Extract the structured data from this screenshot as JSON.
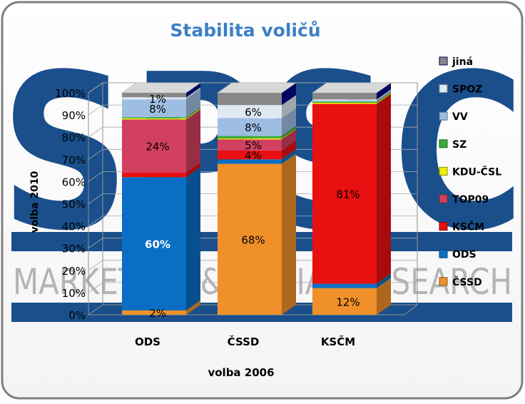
{
  "colors": {
    "jina": "#b0b0b0",
    "SPOZ": "#e0e8f4",
    "VV": "#9ebde2",
    "SZ": "#3aaa3a",
    "KDU-ČSL": "#f0f000",
    "TOP09": "#d24060",
    "KSČM": "#e81010",
    "ODS": "#0a6fc4",
    "ČSSD": "#f0902a",
    "watermark_blue": "#1a4f8c",
    "watermark_gray": "#b4b4b4",
    "title": "#3c7fc6"
  },
  "watermark": {
    "logo_letters": "SPSC",
    "line_text": "MARKETING & SOCIAL RESEARCH"
  },
  "chart_data": {
    "type": "bar",
    "stacked": true,
    "title": "Stabilita voličů",
    "xlabel": "volba 2006",
    "ylabel": "volba 2010",
    "categories": [
      "ODS",
      "ČSSD",
      "KSČM"
    ],
    "ylim": [
      0,
      100
    ],
    "yticks": [
      "0%",
      "10%",
      "20%",
      "30%",
      "40%",
      "50%",
      "60%",
      "70%",
      "80%",
      "90%",
      "100%"
    ],
    "series": [
      {
        "name": "ČSSD",
        "values": [
          2,
          68,
          12
        ]
      },
      {
        "name": "ODS",
        "values": [
          60,
          2,
          2
        ]
      },
      {
        "name": "KSČM",
        "values": [
          2,
          4,
          81
        ]
      },
      {
        "name": "TOP09",
        "values": [
          24,
          5,
          0
        ]
      },
      {
        "name": "KDU-ČSL",
        "values": [
          0.5,
          0.5,
          0.5
        ]
      },
      {
        "name": "SZ",
        "values": [
          0.5,
          1,
          0.5
        ]
      },
      {
        "name": "VV",
        "values": [
          8,
          8,
          0.5
        ]
      },
      {
        "name": "SPOZ",
        "values": [
          1,
          6,
          0.5
        ]
      },
      {
        "name": "jiná",
        "values": [
          2,
          5.5,
          3
        ]
      }
    ],
    "data_labels": [
      {
        "category": "ODS",
        "series": "ČSSD",
        "text": "2%"
      },
      {
        "category": "ODS",
        "series": "ODS",
        "text": "60%"
      },
      {
        "category": "ODS",
        "series": "TOP09",
        "text": "24%"
      },
      {
        "category": "ODS",
        "series": "VV",
        "text": "8%"
      },
      {
        "category": "ODS",
        "series": "SPOZ",
        "text": "1%"
      },
      {
        "category": "ČSSD",
        "series": "ČSSD",
        "text": "68%"
      },
      {
        "category": "ČSSD",
        "series": "KSČM",
        "text": "4%"
      },
      {
        "category": "ČSSD",
        "series": "TOP09",
        "text": "5%"
      },
      {
        "category": "ČSSD",
        "series": "VV",
        "text": "8%"
      },
      {
        "category": "ČSSD",
        "series": "SPOZ",
        "text": "6%"
      },
      {
        "category": "KSČM",
        "series": "ČSSD",
        "text": "12%"
      },
      {
        "category": "KSČM",
        "series": "KSČM",
        "text": "81%"
      }
    ],
    "legend": {
      "placement": "right",
      "items": [
        "jiná",
        "SPOZ",
        "VV",
        "SZ",
        "KDU-ČSL",
        "TOP09",
        "KSČM",
        "ODS",
        "ČSSD"
      ]
    }
  }
}
